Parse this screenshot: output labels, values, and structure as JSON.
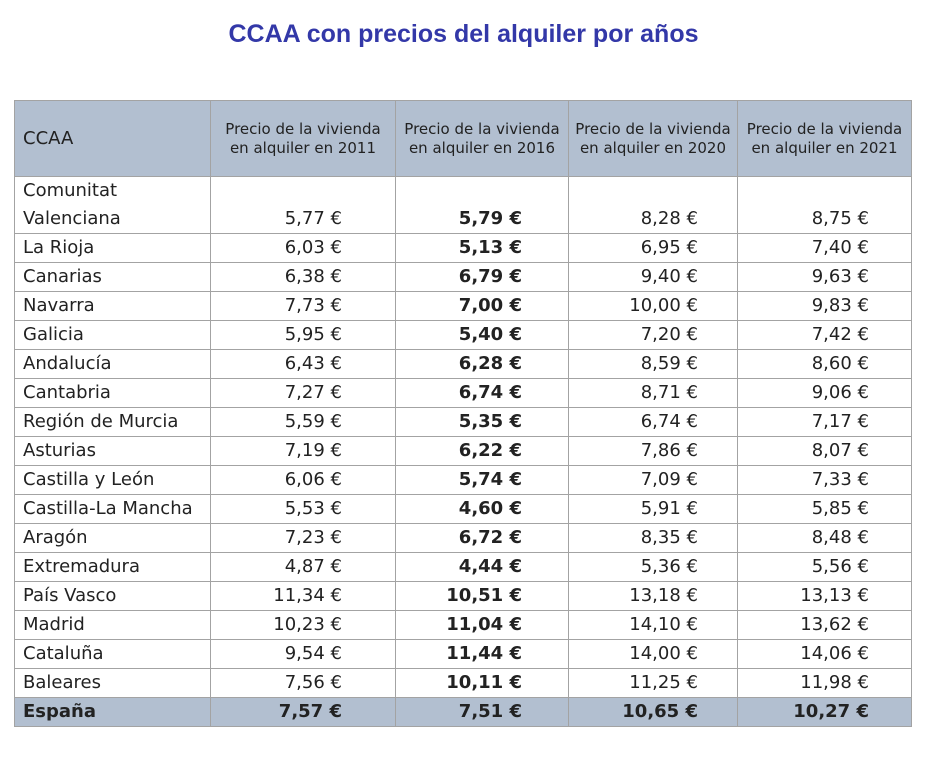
{
  "title": "CCAA con precios del alquiler por años",
  "table": {
    "header": [
      "CCAA",
      "Precio de la vivienda en alquiler en 2011",
      "Precio de la vivienda en alquiler en 2016",
      "Precio de la vivienda en alquiler en 2020",
      "Precio de la vivienda en alquiler en 2021"
    ],
    "rows": [
      [
        "Comunitat Valenciana",
        "5,77 €",
        "5,79 €",
        "8,28 €",
        "8,75 €"
      ],
      [
        "La Rioja",
        "6,03 €",
        "5,13 €",
        "6,95 €",
        "7,40 €"
      ],
      [
        "Canarias",
        "6,38 €",
        "6,79 €",
        "9,40 €",
        "9,63 €"
      ],
      [
        "Navarra",
        "7,73 €",
        "7,00 €",
        "10,00 €",
        "9,83 €"
      ],
      [
        "Galicia",
        "5,95 €",
        "5,40 €",
        "7,20 €",
        "7,42 €"
      ],
      [
        "Andalucía",
        "6,43 €",
        "6,28 €",
        "8,59 €",
        "8,60 €"
      ],
      [
        "Cantabria",
        "7,27 €",
        "6,74 €",
        "8,71 €",
        "9,06 €"
      ],
      [
        "Región de Murcia",
        "5,59 €",
        "5,35 €",
        "6,74 €",
        "7,17 €"
      ],
      [
        "Asturias",
        "7,19 €",
        "6,22 €",
        "7,86 €",
        "8,07 €"
      ],
      [
        "Castilla y León",
        "6,06 €",
        "5,74 €",
        "7,09 €",
        "7,33 €"
      ],
      [
        "Castilla-La Mancha",
        "5,53 €",
        "4,60 €",
        "5,91 €",
        "5,85 €"
      ],
      [
        "Aragón",
        "7,23 €",
        "6,72 €",
        "8,35 €",
        "8,48 €"
      ],
      [
        "Extremadura",
        "4,87 €",
        "4,44 €",
        "5,36 €",
        "5,56 €"
      ],
      [
        "País Vasco",
        "11,34 €",
        "10,51 €",
        "13,18 €",
        "13,13 €"
      ],
      [
        "Madrid",
        "10,23 €",
        "11,04 €",
        "14,10 €",
        "13,62 €"
      ],
      [
        "Cataluña",
        "9,54 €",
        "11,44 €",
        "14,00 €",
        "14,06 €"
      ],
      [
        "Baleares",
        "7,56 €",
        "10,11 €",
        "11,25 €",
        "11,98 €"
      ],
      [
        "España",
        "7,57 €",
        "7,51 €",
        "10,65 €",
        "10,27 €"
      ]
    ]
  }
}
